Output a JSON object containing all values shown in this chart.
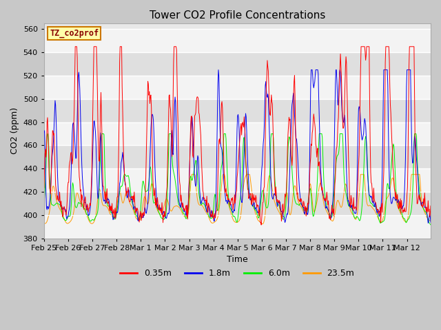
{
  "title": "Tower CO2 Profile Concentrations",
  "xlabel": "Time",
  "ylabel": "CO2 (ppm)",
  "ylim": [
    380,
    565
  ],
  "yticks": [
    380,
    400,
    420,
    440,
    460,
    480,
    500,
    520,
    540,
    560
  ],
  "label_box_text": "TZ_co2prof",
  "legend": [
    "0.35m",
    "1.8m",
    "6.0m",
    "23.5m"
  ],
  "colors": [
    "#ff0000",
    "#0000ee",
    "#00ee00",
    "#ff9900"
  ],
  "line_width": 0.7,
  "figsize": [
    6.4,
    4.8
  ],
  "dpi": 100,
  "n_days": 16,
  "pts_per_day": 48,
  "xtick_labels": [
    "Feb 25",
    "Feb 26",
    "Feb 27",
    "Feb 28",
    "Mar 1",
    "Mar 2",
    "Mar 3",
    "Mar 4",
    "Mar 5",
    "Mar 6",
    "Mar 7",
    "Mar 8",
    "Mar 9",
    "Mar 10",
    "Mar 11",
    "Mar 12"
  ]
}
